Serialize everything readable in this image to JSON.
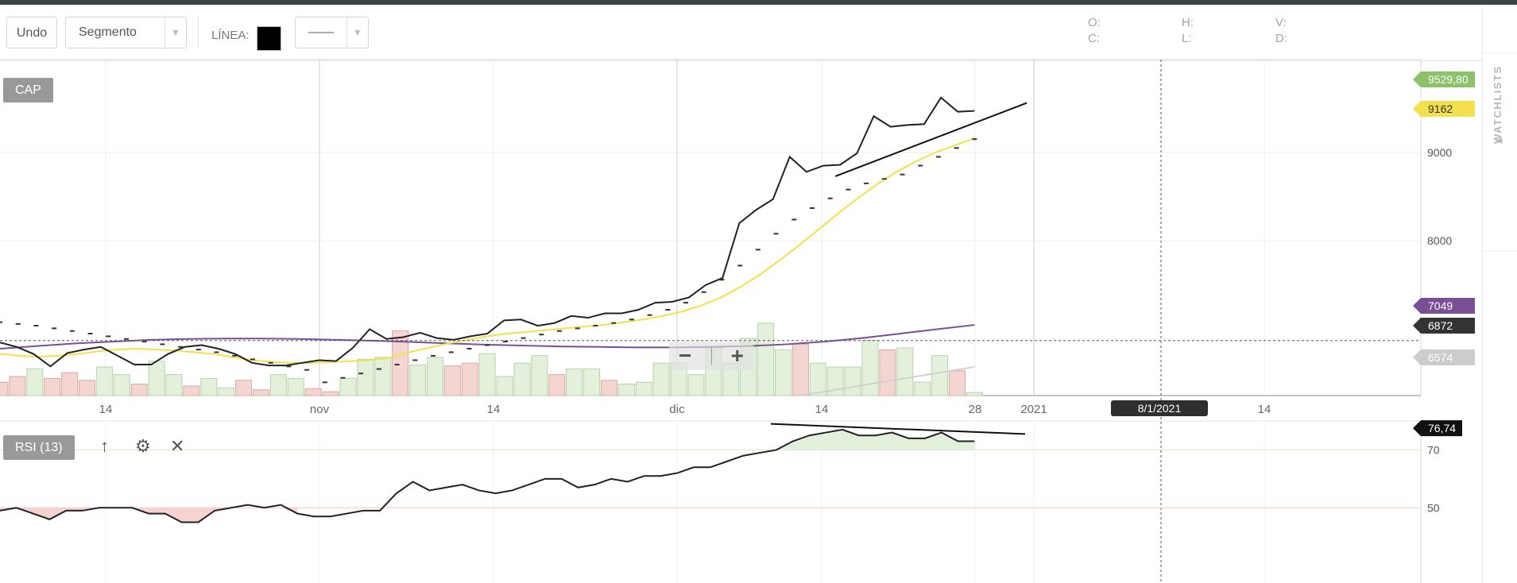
{
  "toolbar": {
    "undo_label": "Undo",
    "drawing_tool": "Segmento",
    "line_label": "LÍNEA:",
    "line_color": "#000000",
    "line_style": "——",
    "ohlc": {
      "o": "O:",
      "h": "H:",
      "v": "V:",
      "c": "C:",
      "l": "L:",
      "d": "D:"
    }
  },
  "sidebar": {
    "label": "WATCHLISTS"
  },
  "chart_data": [
    {
      "type": "line",
      "panel": "price",
      "title": "CAP",
      "x_ticks": [
        "14",
        "nov",
        "14",
        "dic",
        "14",
        "28",
        "2021",
        "14"
      ],
      "crosshair_date": "8/1/2021",
      "y_ticks": [
        8000,
        9000
      ],
      "ylim": [
        6250,
        10050
      ],
      "grid": true,
      "price_labels": [
        {
          "value": "9529,80",
          "color": "#8dc26a",
          "meaning": "last high"
        },
        {
          "value": "9162",
          "color": "#f4df4d",
          "meaning": "moving average (yellow)"
        },
        {
          "value": "7049",
          "color": "#7b4f96",
          "meaning": "moving average (purple)"
        },
        {
          "value": "6872",
          "color": "#333333",
          "meaning": "crosshair price"
        },
        {
          "value": "6574",
          "color": "#cccccc",
          "meaning": "moving average (grey)"
        }
      ],
      "series": [
        {
          "role": "close",
          "color": "#222222",
          "values": [
            6850,
            6800,
            6720,
            6580,
            6730,
            6770,
            6800,
            6700,
            6600,
            6600,
            6720,
            6800,
            6820,
            6780,
            6720,
            6620,
            6590,
            6590,
            6620,
            6650,
            6640,
            6790,
            7000,
            6890,
            6910,
            6960,
            6900,
            6880,
            6920,
            6950,
            7100,
            7110,
            7040,
            7070,
            7150,
            7130,
            7180,
            7180,
            7220,
            7300,
            7310,
            7360,
            7500,
            7580,
            8200,
            8350,
            8470,
            8950,
            8780,
            8850,
            8860,
            8990,
            9410,
            9290,
            9310,
            9320,
            9620,
            9460,
            9470
          ]
        },
        {
          "role": "moving-average-yellow",
          "color": "#f4df4d",
          "values": [
            6720,
            6700,
            6690,
            6700,
            6720,
            6750,
            6770,
            6780,
            6770,
            6760,
            6740,
            6720,
            6680,
            6650,
            6630,
            6620,
            6620,
            6630,
            6640,
            6650,
            6680,
            6740,
            6790,
            6840,
            6880,
            6920,
            6950,
            6970,
            6990,
            7010,
            7030,
            7050,
            7080,
            7110,
            7150,
            7200,
            7270,
            7360,
            7480,
            7620,
            7780,
            7950,
            8130,
            8310,
            8480,
            8640,
            8780,
            8900,
            9000,
            9080,
            9162
          ]
        },
        {
          "role": "moving-average-purple",
          "color": "#7b4f96",
          "values": [
            6780,
            6810,
            6840,
            6860,
            6880,
            6890,
            6895,
            6895,
            6890,
            6880,
            6870,
            6855,
            6840,
            6825,
            6815,
            6805,
            6800,
            6795,
            6795,
            6800,
            6810,
            6830,
            6860,
            6900,
            6950,
            7000,
            7049
          ]
        },
        {
          "role": "parabolic-sar",
          "color": "#333333",
          "values": [
            7080,
            7060,
            7040,
            7010,
            6980,
            6950,
            6920,
            6890,
            6860,
            6830,
            6800,
            6770,
            6740,
            6700,
            6660,
            6620,
            6580,
            6540,
            6400,
            6450,
            6500,
            6550,
            6600,
            6650,
            6700,
            6740,
            6780,
            6820,
            6860,
            6900,
            6940,
            6980,
            7010,
            7040,
            7070,
            7110,
            7160,
            7220,
            7300,
            7420,
            7560,
            7720,
            7900,
            8080,
            8240,
            8370,
            8480,
            8580,
            8650,
            8700,
            8750,
            8850,
            8950,
            9050,
            9150
          ]
        },
        {
          "role": "trendline",
          "color": "#111111",
          "points": [
            [
              48,
              8730
            ],
            [
              59,
              9560
            ]
          ]
        }
      ],
      "volume": [
        {
          "v": 0.35,
          "up": false
        },
        {
          "v": 0.5,
          "up": false
        },
        {
          "v": 0.7,
          "up": true
        },
        {
          "v": 0.45,
          "up": false
        },
        {
          "v": 0.6,
          "up": false
        },
        {
          "v": 0.4,
          "up": false
        },
        {
          "v": 0.75,
          "up": true
        },
        {
          "v": 0.55,
          "up": true
        },
        {
          "v": 0.3,
          "up": false
        },
        {
          "v": 0.9,
          "up": true
        },
        {
          "v": 0.55,
          "up": true
        },
        {
          "v": 0.25,
          "up": false
        },
        {
          "v": 0.45,
          "up": true
        },
        {
          "v": 0.2,
          "up": true
        },
        {
          "v": 0.4,
          "up": false
        },
        {
          "v": 0.15,
          "up": false
        },
        {
          "v": 0.55,
          "up": true
        },
        {
          "v": 0.45,
          "up": true
        },
        {
          "v": 0.18,
          "up": false
        },
        {
          "v": 0.1,
          "up": false
        },
        {
          "v": 0.45,
          "up": true
        },
        {
          "v": 0.95,
          "up": true
        },
        {
          "v": 1.0,
          "up": true
        },
        {
          "v": 1.7,
          "up": false
        },
        {
          "v": 0.8,
          "up": true
        },
        {
          "v": 1.0,
          "up": true
        },
        {
          "v": 0.78,
          "up": false
        },
        {
          "v": 0.85,
          "up": false
        },
        {
          "v": 1.1,
          "up": true
        },
        {
          "v": 0.5,
          "up": true
        },
        {
          "v": 0.85,
          "up": true
        },
        {
          "v": 1.05,
          "up": true
        },
        {
          "v": 0.55,
          "up": false
        },
        {
          "v": 0.7,
          "up": true
        },
        {
          "v": 0.7,
          "up": true
        },
        {
          "v": 0.4,
          "up": false
        },
        {
          "v": 0.3,
          "up": true
        },
        {
          "v": 0.35,
          "up": true
        },
        {
          "v": 0.85,
          "up": true
        },
        {
          "v": 0.85,
          "up": true
        },
        {
          "v": 0.55,
          "up": true
        },
        {
          "v": 1.25,
          "up": true
        },
        {
          "v": 0.85,
          "up": true
        },
        {
          "v": 1.5,
          "up": true
        },
        {
          "v": 1.9,
          "up": true
        },
        {
          "v": 1.2,
          "up": true
        },
        {
          "v": 1.35,
          "up": false
        },
        {
          "v": 0.85,
          "up": true
        },
        {
          "v": 0.75,
          "up": true
        },
        {
          "v": 0.75,
          "up": true
        },
        {
          "v": 1.45,
          "up": true
        },
        {
          "v": 1.2,
          "up": false
        },
        {
          "v": 1.25,
          "up": true
        },
        {
          "v": 0.35,
          "up": true
        },
        {
          "v": 1.05,
          "up": true
        },
        {
          "v": 0.65,
          "up": false
        },
        {
          "v": 0.08,
          "up": true
        }
      ]
    },
    {
      "type": "area",
      "panel": "rsi",
      "title": "RSI (13)",
      "ylim": [
        24,
        80
      ],
      "y_ticks": [
        50,
        70
      ],
      "current_value": "76,74",
      "overbought": 70,
      "midline": 50,
      "values": [
        49,
        50,
        48,
        46,
        49,
        49,
        50,
        50,
        50,
        48,
        48,
        45,
        45,
        49,
        50,
        51,
        50,
        51,
        48,
        47,
        47,
        48,
        49,
        49,
        55,
        59,
        56,
        57,
        58,
        56,
        55,
        56,
        58,
        60,
        60,
        57,
        58,
        60,
        59,
        61,
        61,
        62,
        64,
        64,
        66,
        68,
        69,
        70,
        73,
        75,
        76,
        77,
        75,
        75,
        76,
        74,
        74,
        76,
        73,
        73
      ]
    }
  ]
}
